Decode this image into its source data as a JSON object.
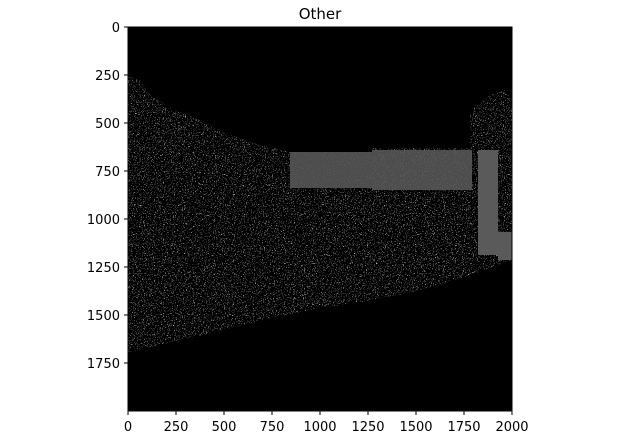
{
  "title": "Other",
  "image": {
    "description_kind": "grayscale texture/edge image with dark band at top and dark bottom region",
    "colors": {
      "background": "#000000",
      "texture_light": "#e6e6e6",
      "flat_gray": "#5a5a5a"
    }
  },
  "axes": {
    "x_ticks": [
      "0",
      "250",
      "500",
      "750",
      "1000",
      "1250",
      "1500",
      "1750",
      "2000"
    ],
    "y_ticks": [
      "0",
      "250",
      "500",
      "750",
      "1000",
      "1250",
      "1500",
      "1750"
    ],
    "x_range": [
      0,
      2000
    ],
    "y_range": [
      0,
      2000
    ],
    "y_inverted": true
  }
}
